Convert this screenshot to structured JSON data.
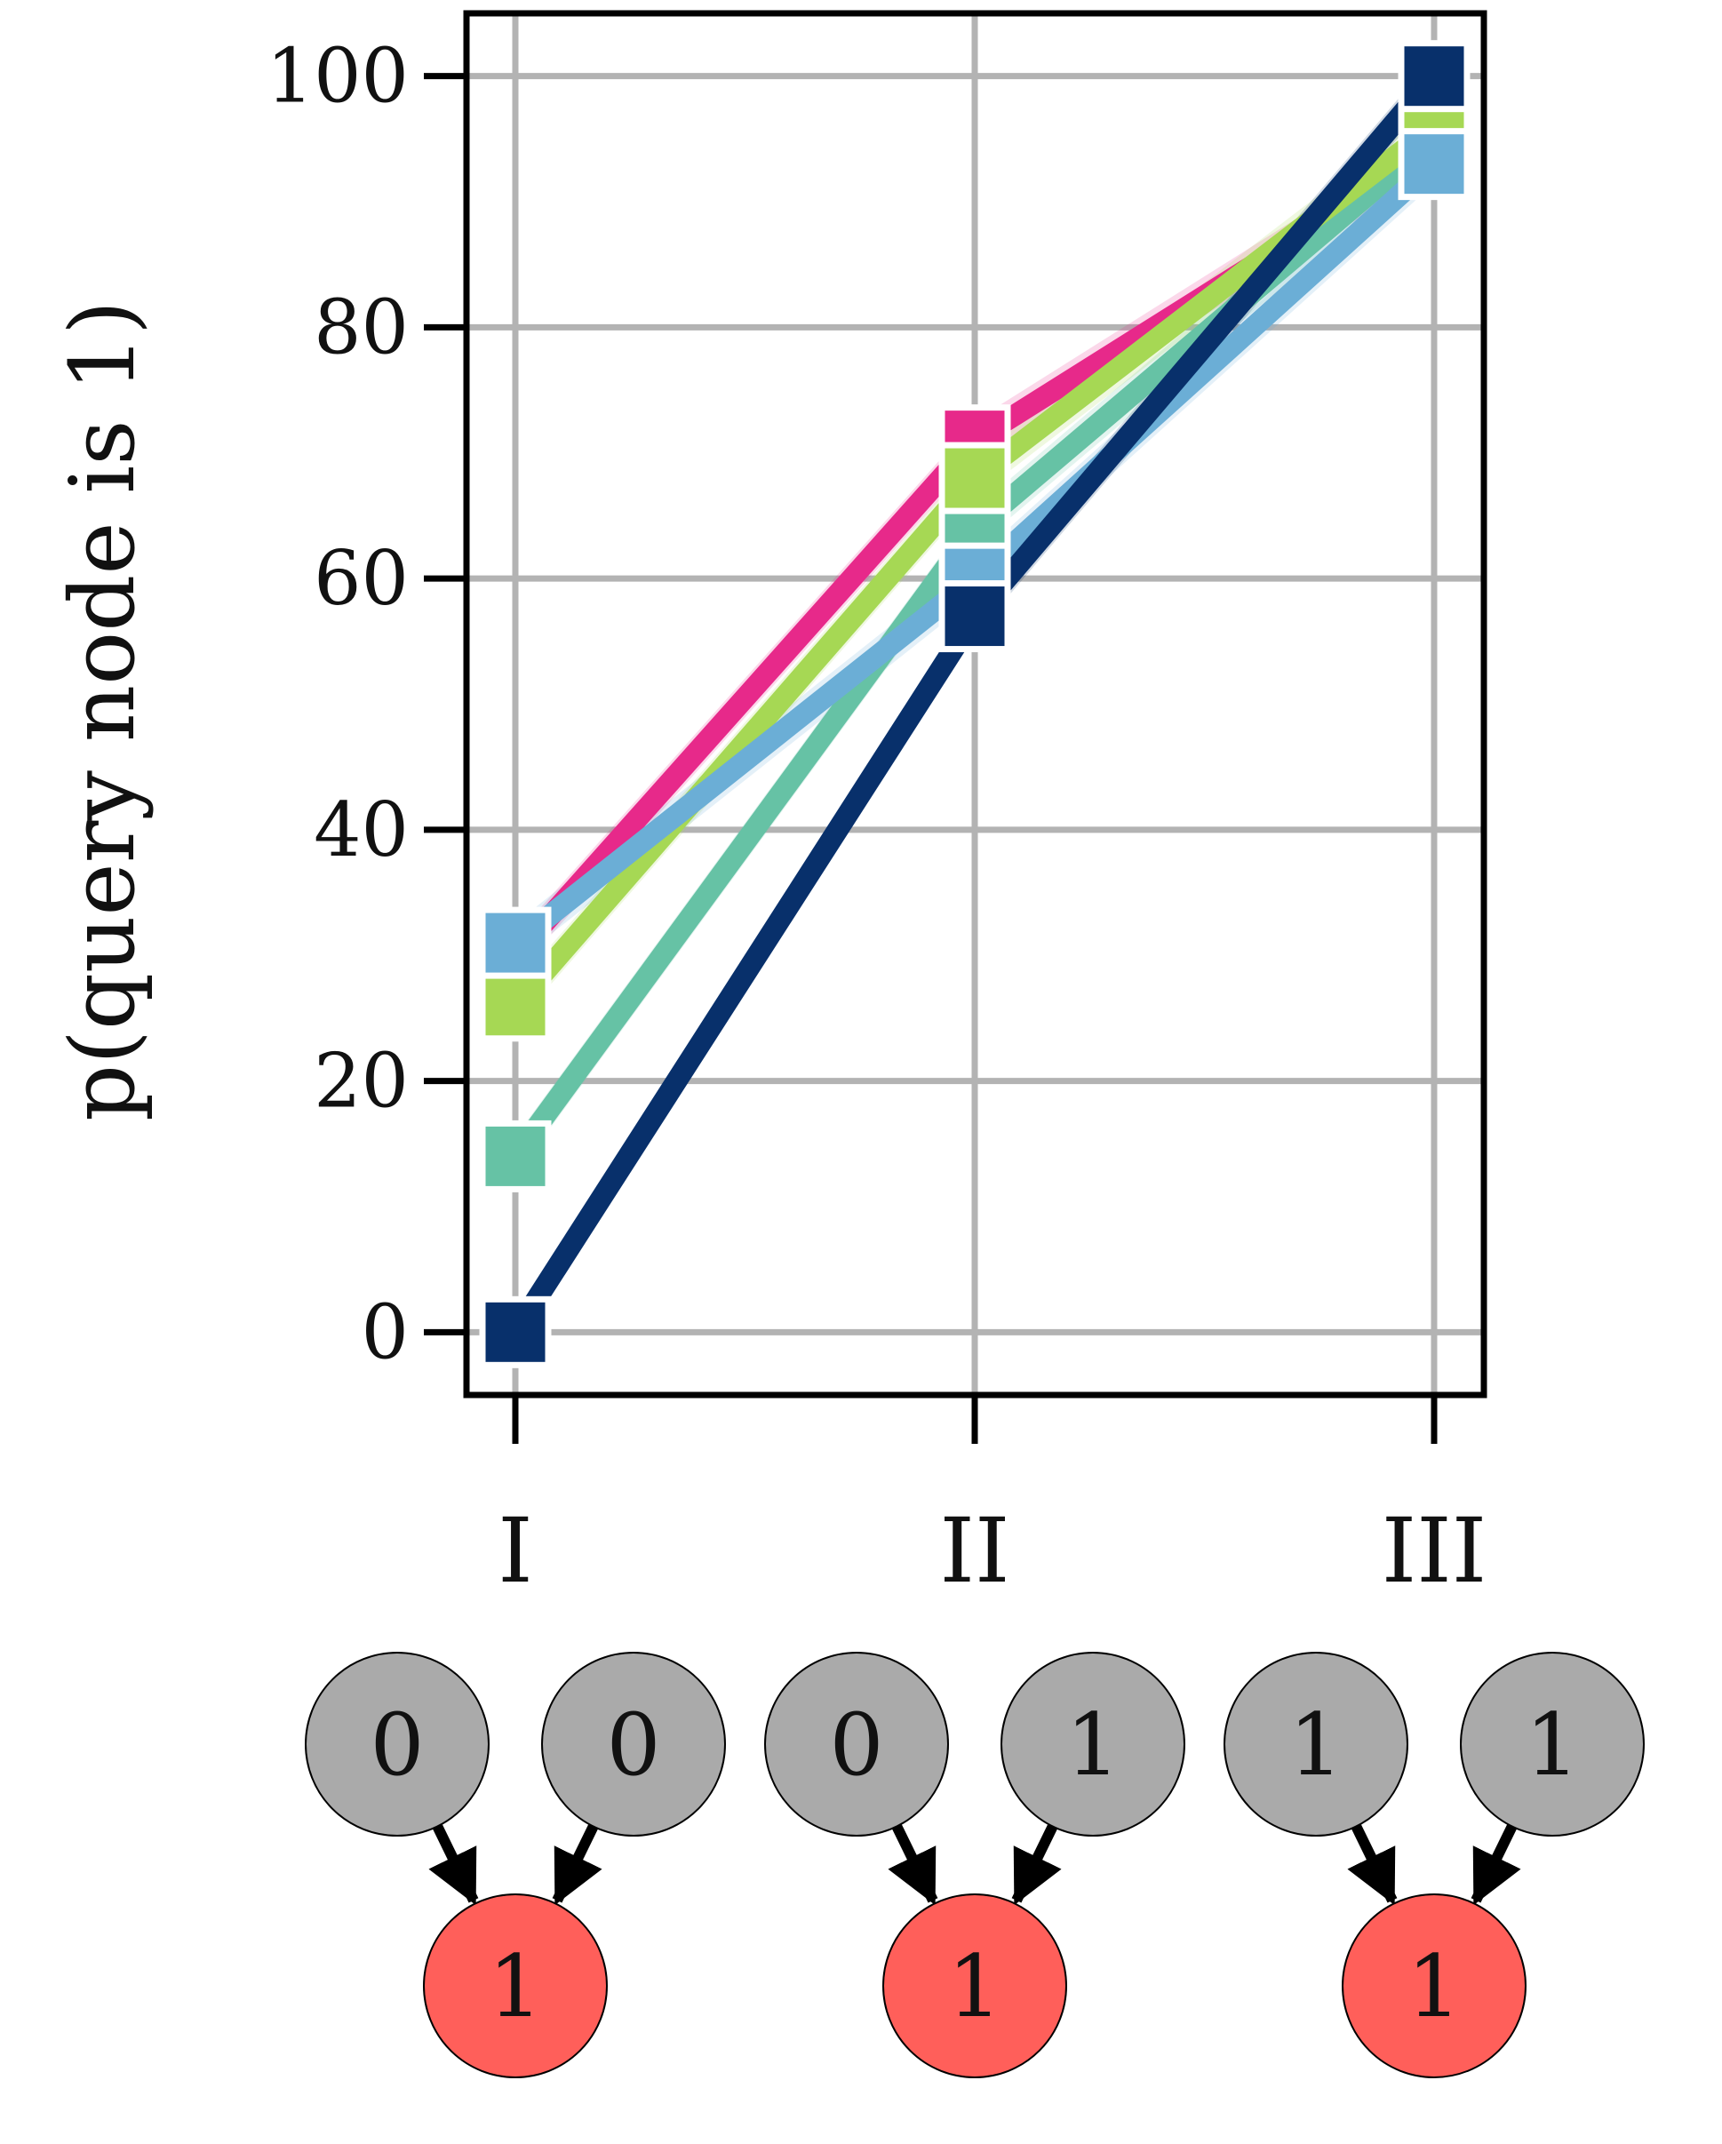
{
  "chart_data": {
    "type": "line",
    "title": "",
    "xlabel": "",
    "ylabel": "p(query node is 1)",
    "categories": [
      "I",
      "II",
      "III"
    ],
    "ylim": [
      -5,
      105
    ],
    "yticks": [
      "0",
      "20",
      "40",
      "60",
      "80",
      "100"
    ],
    "ytick_values": [
      0,
      20,
      40,
      60,
      80,
      100
    ],
    "grid": true,
    "legend": "none",
    "series": [
      {
        "color": "#e7298a",
        "values": [
          30,
          71,
          94
        ]
      },
      {
        "color": "#66c2a5",
        "values": [
          14,
          64,
          95
        ]
      },
      {
        "color": "#a6d854",
        "values": [
          26,
          68,
          96
        ]
      },
      {
        "color": "#6baed6",
        "values": [
          31,
          60,
          93
        ]
      },
      {
        "color": "#08306b",
        "values": [
          0,
          57,
          100
        ]
      }
    ],
    "node_diagrams": [
      {
        "category": "I",
        "parents": [
          "0",
          "0"
        ],
        "child": "1"
      },
      {
        "category": "II",
        "parents": [
          "0",
          "1"
        ],
        "child": "1"
      },
      {
        "category": "III",
        "parents": [
          "1",
          "1"
        ],
        "child": "1"
      }
    ],
    "colors": {
      "parent_node": "#aaaaaa",
      "query_node": "#ff5f5a",
      "grid": "#b3b3b3"
    }
  }
}
